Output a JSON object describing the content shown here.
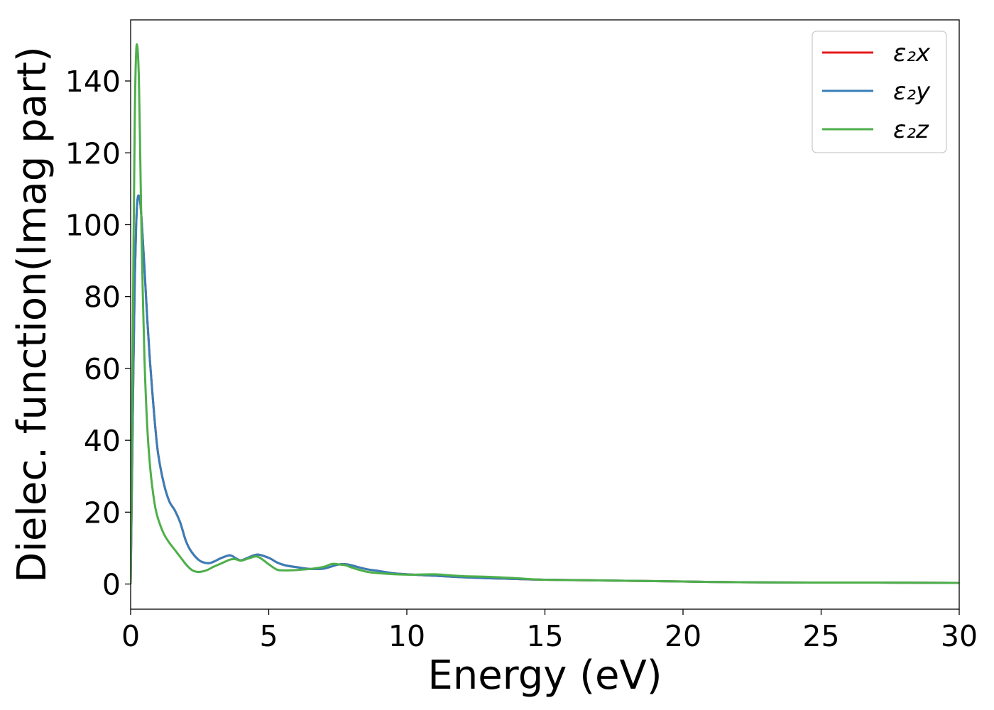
{
  "chart_data": {
    "type": "line",
    "title": "",
    "xlabel": "Energy (eV)",
    "ylabel": "Dielec. function(Imag part)",
    "xlim": [
      0,
      30
    ],
    "ylim": [
      -7,
      157
    ],
    "xticks": [
      0,
      5,
      10,
      15,
      20,
      25,
      30
    ],
    "yticks": [
      0,
      20,
      40,
      60,
      80,
      100,
      120,
      140
    ],
    "grid": false,
    "legend_position": "top-right",
    "series": [
      {
        "name": "ε₂x",
        "color": "#e41a1c",
        "x": [
          0,
          0.05,
          0.1,
          0.15,
          0.2,
          0.25,
          0.3,
          0.35,
          0.4,
          0.5,
          0.6,
          0.7,
          0.8,
          0.9,
          1.0,
          1.2,
          1.4,
          1.6,
          1.8,
          2.0,
          2.2,
          2.5,
          2.8,
          3.0,
          3.3,
          3.6,
          3.8,
          4.0,
          4.3,
          4.6,
          5.0,
          5.3,
          5.6,
          6.0,
          6.5,
          7.0,
          7.5,
          7.8,
          8.0,
          8.5,
          9.0,
          9.5,
          10,
          11,
          12,
          13,
          14,
          15,
          17,
          20,
          22,
          25,
          27,
          30
        ],
        "values": [
          0,
          30,
          60,
          85,
          100,
          107,
          108,
          106,
          101,
          88,
          74,
          62,
          52,
          43,
          36,
          28,
          23,
          20.5,
          17,
          12,
          9,
          6.5,
          5.8,
          6.2,
          7.3,
          8.0,
          7.2,
          6.6,
          7.5,
          8.2,
          7.3,
          6.0,
          5.2,
          4.7,
          4.2,
          4.3,
          5.4,
          5.5,
          5.2,
          4.2,
          3.6,
          3.0,
          2.7,
          2.3,
          1.9,
          1.6,
          1.4,
          1.2,
          1.0,
          0.7,
          0.5,
          0.4,
          0.4,
          0.3
        ]
      },
      {
        "name": "ε₂y",
        "color": "#377eb8",
        "x": [
          0,
          0.05,
          0.1,
          0.15,
          0.2,
          0.25,
          0.3,
          0.35,
          0.4,
          0.5,
          0.6,
          0.7,
          0.8,
          0.9,
          1.0,
          1.2,
          1.4,
          1.6,
          1.8,
          2.0,
          2.2,
          2.5,
          2.8,
          3.0,
          3.3,
          3.6,
          3.8,
          4.0,
          4.3,
          4.6,
          5.0,
          5.3,
          5.6,
          6.0,
          6.5,
          7.0,
          7.5,
          7.8,
          8.0,
          8.5,
          9.0,
          9.5,
          10,
          11,
          12,
          13,
          14,
          15,
          17,
          20,
          22,
          25,
          27,
          30
        ],
        "values": [
          0,
          30,
          60,
          85,
          100,
          107,
          108,
          106,
          101,
          88,
          74,
          62,
          52,
          43,
          36,
          28,
          23,
          20.5,
          17,
          12,
          9,
          6.5,
          5.8,
          6.2,
          7.3,
          8.0,
          7.2,
          6.6,
          7.5,
          8.2,
          7.3,
          6.0,
          5.2,
          4.7,
          4.2,
          4.3,
          5.4,
          5.5,
          5.2,
          4.2,
          3.6,
          3.0,
          2.7,
          2.3,
          1.9,
          1.6,
          1.4,
          1.2,
          1.0,
          0.7,
          0.5,
          0.4,
          0.4,
          0.3
        ]
      },
      {
        "name": "ε₂z",
        "color": "#4daf4a",
        "x": [
          0,
          0.05,
          0.1,
          0.15,
          0.2,
          0.25,
          0.3,
          0.35,
          0.4,
          0.5,
          0.6,
          0.7,
          0.8,
          0.9,
          1.0,
          1.2,
          1.4,
          1.6,
          1.8,
          2.0,
          2.2,
          2.4,
          2.6,
          2.8,
          3.0,
          3.3,
          3.6,
          3.8,
          4.0,
          4.3,
          4.6,
          5.0,
          5.3,
          5.6,
          6.0,
          6.5,
          7.0,
          7.3,
          7.6,
          7.8,
          8.0,
          8.5,
          9.0,
          10,
          11,
          12,
          13,
          14,
          15,
          17,
          20,
          22,
          25,
          27,
          30
        ],
        "values": [
          0,
          40,
          90,
          130,
          148,
          149,
          140,
          118,
          95,
          63,
          44,
          33,
          26,
          21,
          18,
          14,
          11.5,
          9.5,
          7.5,
          5.5,
          4.0,
          3.4,
          3.5,
          4.0,
          4.8,
          5.8,
          6.8,
          6.9,
          6.5,
          7.2,
          7.6,
          5.5,
          4.0,
          3.8,
          3.9,
          4.2,
          4.8,
          5.6,
          5.4,
          5.2,
          4.6,
          3.5,
          3.0,
          2.6,
          2.7,
          2.2,
          2.0,
          1.6,
          1.2,
          1.0,
          0.7,
          0.5,
          0.4,
          0.4,
          0.3
        ]
      }
    ]
  }
}
